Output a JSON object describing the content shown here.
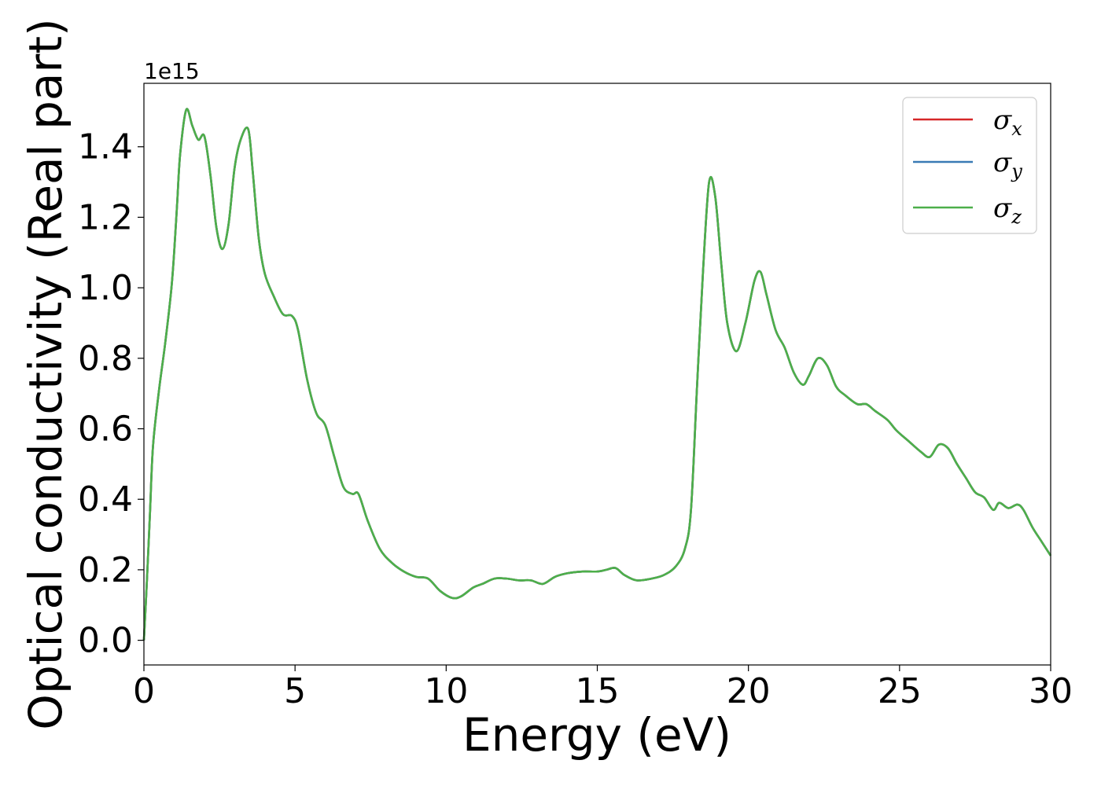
{
  "chart_data": {
    "type": "line",
    "xlabel": "Energy (eV)",
    "ylabel": "Optical conductivity (Real part)",
    "y_offset_text": "1e15",
    "y_scale": 1000000000000000.0,
    "xlim": [
      0,
      30
    ],
    "ylim": [
      -0.07,
      1.58
    ],
    "x_ticks": [
      0,
      5,
      10,
      15,
      20,
      25,
      30
    ],
    "x_tick_labels": [
      "0",
      "5",
      "10",
      "15",
      "20",
      "25",
      "30"
    ],
    "y_ticks": [
      0.0,
      0.2,
      0.4,
      0.6,
      0.8,
      1.0,
      1.2,
      1.4
    ],
    "y_tick_labels": [
      "0.0",
      "0.2",
      "0.4",
      "0.6",
      "0.8",
      "1.0",
      "1.2",
      "1.4"
    ],
    "grid": false,
    "legend_position": "top-right",
    "series": [
      {
        "name": "σx",
        "symbol": "σ",
        "subscript": "x",
        "color": "#d62728"
      },
      {
        "name": "σy",
        "symbol": "σ",
        "subscript": "y",
        "color": "#3a7ab5"
      },
      {
        "name": "σz",
        "symbol": "σ",
        "subscript": "z",
        "color": "#4daf4a"
      }
    ],
    "x": [
      0,
      0.1,
      0.2,
      0.3,
      0.5,
      0.7,
      0.9,
      1.0,
      1.1,
      1.2,
      1.4,
      1.6,
      1.8,
      2.0,
      2.2,
      2.4,
      2.6,
      2.8,
      3.0,
      3.2,
      3.45,
      3.6,
      3.8,
      4.0,
      4.3,
      4.6,
      4.9,
      5.1,
      5.4,
      5.7,
      6.0,
      6.3,
      6.6,
      6.9,
      7.1,
      7.4,
      7.8,
      8.2,
      8.6,
      9.0,
      9.4,
      9.8,
      10.2,
      10.5,
      10.9,
      11.2,
      11.6,
      12.0,
      12.4,
      12.8,
      13.2,
      13.6,
      14.0,
      14.5,
      15.0,
      15.3,
      15.6,
      15.9,
      16.3,
      16.8,
      17.2,
      17.6,
      17.9,
      18.1,
      18.3,
      18.5,
      18.7,
      18.9,
      19.1,
      19.3,
      19.6,
      19.9,
      20.2,
      20.4,
      20.6,
      20.9,
      21.2,
      21.5,
      21.8,
      22.0,
      22.3,
      22.6,
      22.9,
      23.2,
      23.6,
      23.9,
      24.2,
      24.6,
      24.9,
      25.3,
      25.7,
      26.0,
      26.3,
      26.6,
      26.9,
      27.2,
      27.5,
      27.8,
      28.1,
      28.3,
      28.6,
      28.9,
      29.1,
      29.4,
      29.7,
      30.0
    ],
    "values": [
      0.0,
      0.17,
      0.36,
      0.55,
      0.71,
      0.84,
      0.99,
      1.1,
      1.24,
      1.38,
      1.505,
      1.46,
      1.42,
      1.43,
      1.32,
      1.17,
      1.11,
      1.18,
      1.34,
      1.42,
      1.45,
      1.33,
      1.14,
      1.04,
      0.975,
      0.925,
      0.92,
      0.88,
      0.74,
      0.645,
      0.61,
      0.52,
      0.435,
      0.415,
      0.415,
      0.34,
      0.26,
      0.22,
      0.195,
      0.18,
      0.175,
      0.14,
      0.12,
      0.125,
      0.15,
      0.16,
      0.175,
      0.175,
      0.17,
      0.17,
      0.16,
      0.18,
      0.19,
      0.195,
      0.195,
      0.2,
      0.205,
      0.185,
      0.17,
      0.175,
      0.185,
      0.21,
      0.26,
      0.37,
      0.72,
      1.05,
      1.3,
      1.26,
      1.07,
      0.9,
      0.82,
      0.9,
      1.02,
      1.045,
      0.98,
      0.88,
      0.83,
      0.76,
      0.725,
      0.75,
      0.8,
      0.78,
      0.72,
      0.695,
      0.67,
      0.67,
      0.65,
      0.625,
      0.595,
      0.565,
      0.535,
      0.52,
      0.555,
      0.545,
      0.5,
      0.46,
      0.42,
      0.405,
      0.37,
      0.39,
      0.375,
      0.385,
      0.37,
      0.32,
      0.28,
      0.24
    ]
  }
}
